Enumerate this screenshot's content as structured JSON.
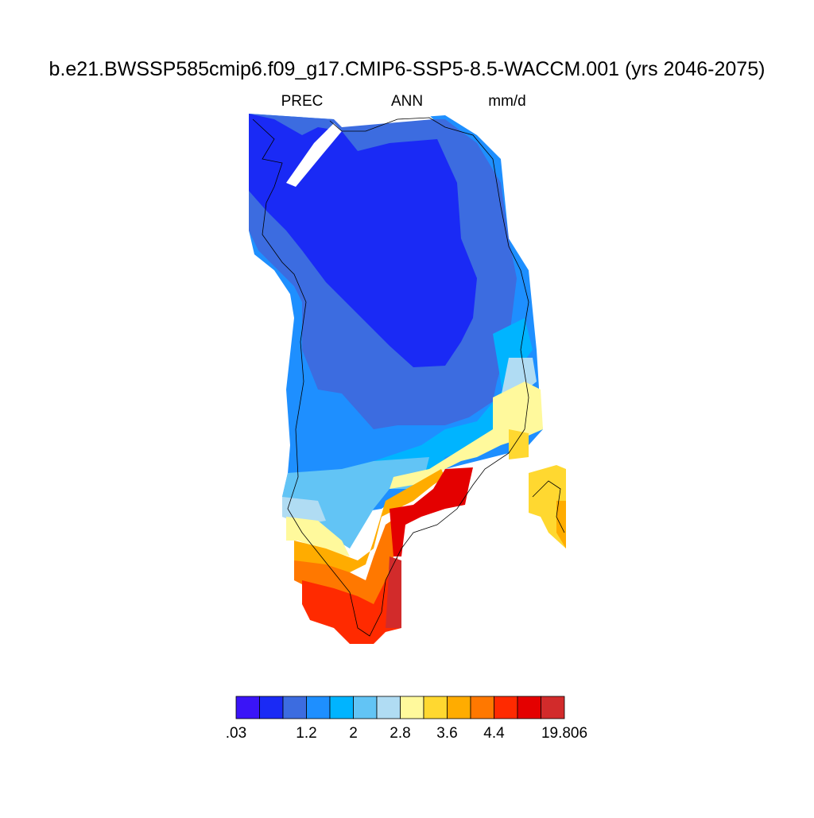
{
  "header": {
    "title": "b.e21.BWSSP585cmip6.f09_g17.CMIP6-SSP5-8.5-WACCM.001 (yrs 2046-2075)",
    "variable": "PREC",
    "season": "ANN",
    "units": "mm/d"
  },
  "colorbar": {
    "colors": [
      "#3a14f7",
      "#1a2af5",
      "#3c6ce0",
      "#1e8fff",
      "#00b4ff",
      "#62c4f5",
      "#b0dcf3",
      "#fff99c",
      "#ffd830",
      "#ffac00",
      "#ff7800",
      "#ff2a00",
      "#e40000",
      "#d22b2b"
    ],
    "labels": [
      {
        "value": 0.03,
        "label": ".03"
      },
      1.2,
      2,
      2.8,
      3.6,
      4.4,
      19.806
    ]
  }
}
